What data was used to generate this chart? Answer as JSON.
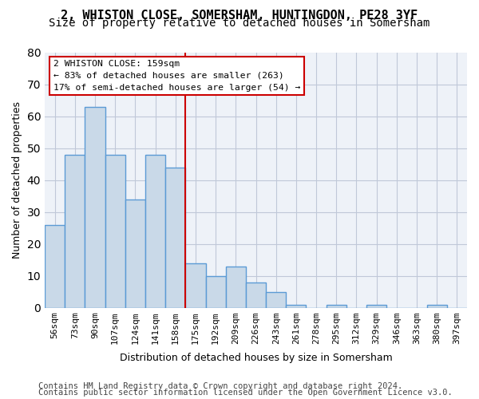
{
  "title_line1": "2, WHISTON CLOSE, SOMERSHAM, HUNTINGDON, PE28 3YF",
  "title_line2": "Size of property relative to detached houses in Somersham",
  "xlabel": "Distribution of detached houses by size in Somersham",
  "ylabel": "Number of detached properties",
  "footer_line1": "Contains HM Land Registry data © Crown copyright and database right 2024.",
  "footer_line2": "Contains public sector information licensed under the Open Government Licence v3.0.",
  "categories": [
    "56sqm",
    "73sqm",
    "90sqm",
    "107sqm",
    "124sqm",
    "141sqm",
    "158sqm",
    "175sqm",
    "192sqm",
    "209sqm",
    "226sqm",
    "243sqm",
    "261sqm",
    "278sqm",
    "295sqm",
    "312sqm",
    "329sqm",
    "346sqm",
    "363sqm",
    "380sqm",
    "397sqm"
  ],
  "values": [
    26,
    48,
    63,
    48,
    34,
    48,
    44,
    14,
    10,
    13,
    8,
    5,
    1,
    0,
    1,
    0,
    1,
    0,
    0,
    1,
    0
  ],
  "bar_color": "#c9d9e8",
  "bar_edge_color": "#5b9bd5",
  "bar_edge_width": 1.0,
  "vline_x": 6.5,
  "vline_color": "#cc0000",
  "annotation_text": "2 WHISTON CLOSE: 159sqm\n← 83% of detached houses are smaller (263)\n17% of semi-detached houses are larger (54) →",
  "ylim": [
    0,
    80
  ],
  "yticks": [
    0,
    10,
    20,
    30,
    40,
    50,
    60,
    70,
    80
  ],
  "grid_color": "#c0c8d8",
  "background_color": "#eef2f8",
  "title_fontsize": 11,
  "subtitle_fontsize": 10,
  "axis_fontsize": 9,
  "tick_fontsize": 8,
  "footer_fontsize": 7.5
}
